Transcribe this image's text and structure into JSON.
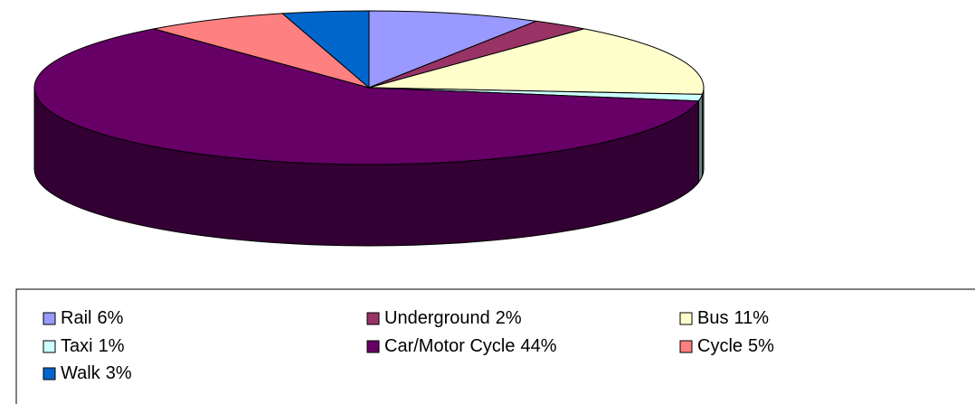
{
  "chart_data": {
    "type": "pie3d",
    "categories": [
      "Rail",
      "Underground",
      "Bus",
      "Taxi",
      "Car/Motor Cycle",
      "Cycle",
      "Walk"
    ],
    "values": [
      6,
      2,
      11,
      1,
      44,
      5,
      3
    ],
    "value_labels": [
      "6%",
      "2%",
      "11%",
      "1%",
      "44%",
      "5%",
      "3%"
    ],
    "colors": [
      "#9999ff",
      "#993366",
      "#ffffcc",
      "#ccffff",
      "#660066",
      "#ff8080",
      "#0066cc"
    ],
    "legend": "bottom"
  }
}
